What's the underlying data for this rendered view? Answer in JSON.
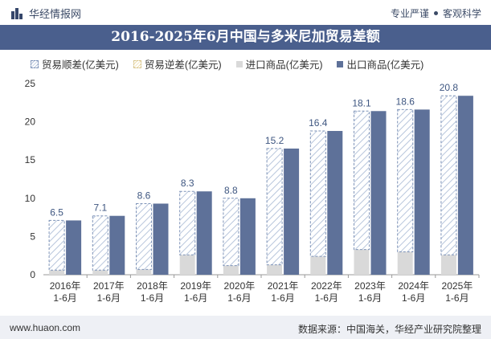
{
  "header": {
    "brand": "华经情报网",
    "tag1": "专业严谨",
    "tag2": "客观科学"
  },
  "title": "2016-2025年6月中国与多米尼加贸易差额",
  "footer": {
    "left": "www.huaon.com",
    "right": "数据来源：中国海关，华经产业研究院整理"
  },
  "colors": {
    "surplus": "#d6dfec",
    "deficit": "#f3e8c8",
    "import": "#d9d9d9",
    "export": "#5e7199",
    "title_bg": "#4a5f8d"
  },
  "chart_data": {
    "type": "bar",
    "categories": [
      "2016年\n1-6月",
      "2017年\n1-6月",
      "2018年\n1-6月",
      "2019年\n1-6月",
      "2020年\n1-6月",
      "2021年\n1-6月",
      "2022年\n1-6月",
      "2023年\n1-6月",
      "2024年\n1-6月",
      "2025年\n1-6月"
    ],
    "series": [
      {
        "name": "贸易顺差(亿美元)",
        "values": [
          6.5,
          7.1,
          8.6,
          8.3,
          8.8,
          15.2,
          16.4,
          18.1,
          18.6,
          20.8
        ]
      },
      {
        "name": "贸易逆差(亿美元)",
        "values": [
          0,
          0,
          0,
          0,
          0,
          0,
          0,
          0,
          0,
          0
        ]
      },
      {
        "name": "进口商品(亿美元)",
        "values": [
          0.6,
          0.6,
          0.7,
          2.6,
          1.2,
          1.3,
          2.4,
          3.3,
          3.0,
          2.6
        ]
      },
      {
        "name": "出口商品(亿美元)",
        "values": [
          7.1,
          7.7,
          9.3,
          10.9,
          10.0,
          16.5,
          18.8,
          21.4,
          21.6,
          23.4
        ]
      }
    ],
    "ylim": [
      0,
      25
    ],
    "yticks": [
      0,
      5,
      10,
      15,
      20,
      25
    ],
    "data_labels": [
      "6.5",
      "7.1",
      "8.6",
      "8.3",
      "8.8",
      "15.2",
      "16.4",
      "18.1",
      "18.6",
      "20.8"
    ]
  }
}
